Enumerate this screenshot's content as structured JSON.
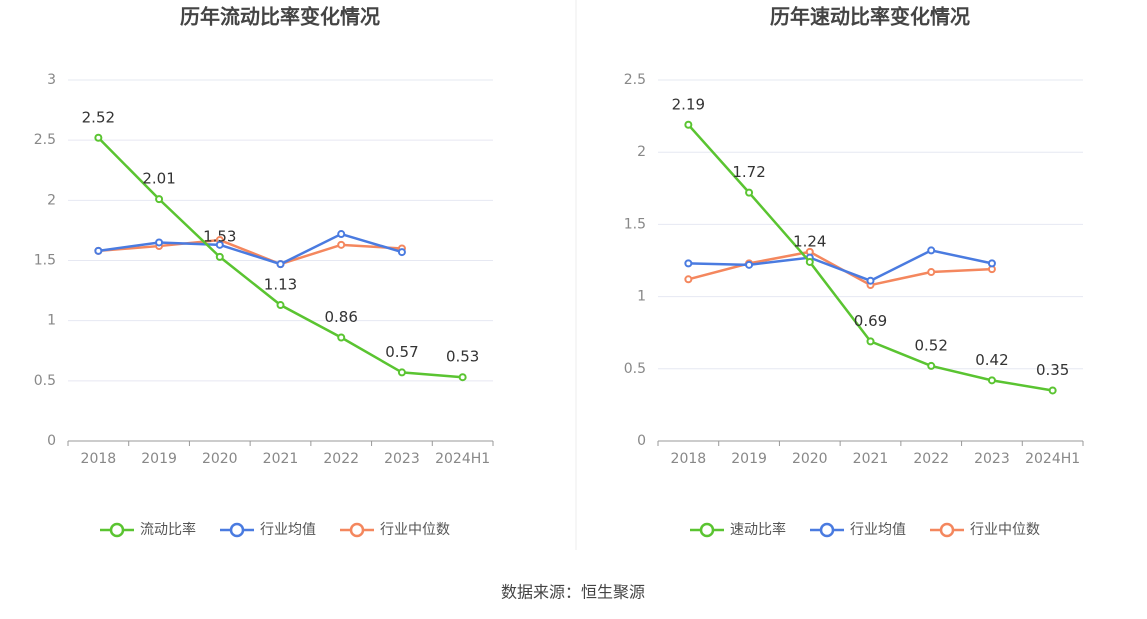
{
  "chart_data": [
    {
      "type": "line",
      "title": "历年流动比率变化情况",
      "categories": [
        "2018",
        "2019",
        "2020",
        "2021",
        "2022",
        "2023",
        "2024H1"
      ],
      "series": [
        {
          "name": "流动比率",
          "color": "#5ac431",
          "values": [
            2.52,
            2.01,
            1.53,
            1.13,
            0.86,
            0.57,
            0.53
          ]
        },
        {
          "name": "行业均值",
          "color": "#4a7be0",
          "values": [
            1.58,
            1.65,
            1.63,
            1.47,
            1.72,
            1.57,
            null
          ]
        },
        {
          "name": "行业中位数",
          "color": "#f4875e",
          "values": [
            1.58,
            1.62,
            1.67,
            1.47,
            1.63,
            1.6,
            null
          ]
        }
      ],
      "ylim": [
        0,
        3
      ],
      "yticks": [
        0,
        0.5,
        1,
        1.5,
        2,
        2.5,
        3
      ],
      "grid": true,
      "legend": "bottom"
    },
    {
      "type": "line",
      "title": "历年速动比率变化情况",
      "categories": [
        "2018",
        "2019",
        "2020",
        "2021",
        "2022",
        "2023",
        "2024H1"
      ],
      "series": [
        {
          "name": "速动比率",
          "color": "#5ac431",
          "values": [
            2.19,
            1.72,
            1.24,
            0.69,
            0.52,
            0.42,
            0.35
          ]
        },
        {
          "name": "行业均值",
          "color": "#4a7be0",
          "values": [
            1.23,
            1.22,
            1.27,
            1.11,
            1.32,
            1.23,
            null
          ]
        },
        {
          "name": "行业中位数",
          "color": "#f4875e",
          "values": [
            1.12,
            1.23,
            1.31,
            1.08,
            1.17,
            1.19,
            null
          ]
        }
      ],
      "ylim": [
        0,
        2.5
      ],
      "yticks": [
        0,
        0.5,
        1,
        1.5,
        2,
        2.5
      ],
      "grid": true,
      "legend": "bottom"
    }
  ],
  "source": "数据来源：恒生聚源"
}
